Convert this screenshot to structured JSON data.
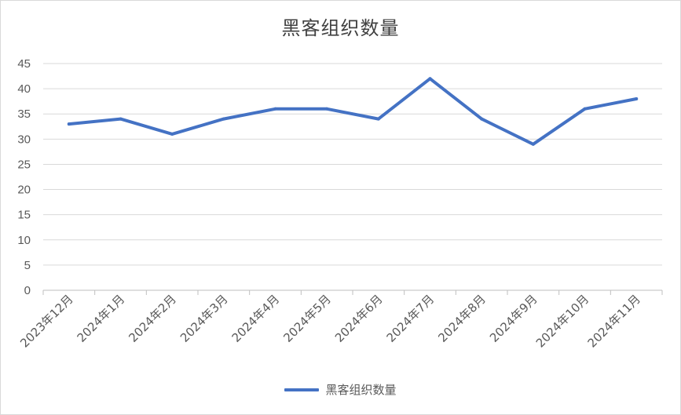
{
  "chart_data": {
    "type": "line",
    "title": "黑客组织数量",
    "xlabel": "",
    "ylabel": "",
    "categories": [
      "2023年12月",
      "2024年1月",
      "2024年2月",
      "2024年3月",
      "2024年4月",
      "2024年5月",
      "2024年6月",
      "2024年7月",
      "2024年8月",
      "2024年9月",
      "2024年10月",
      "2024年11月"
    ],
    "series": [
      {
        "name": "黑客组织数量",
        "values": [
          33,
          34,
          31,
          34,
          36,
          36,
          34,
          42,
          34,
          29,
          36,
          38
        ],
        "color": "#4472c4"
      }
    ],
    "ylim": [
      0,
      45
    ],
    "yticks": [
      "0",
      "5",
      "10",
      "15",
      "20",
      "25",
      "30",
      "35",
      "40",
      "45"
    ],
    "grid": true,
    "legend_position": "bottom"
  }
}
